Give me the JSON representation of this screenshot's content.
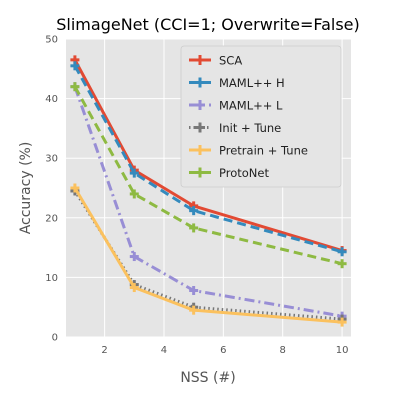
{
  "chart_data": {
    "type": "line",
    "title": "SlimageNet (CCI=1; Overwrite=False)",
    "xlabel": "NSS (#)",
    "ylabel": "Accuracy (%)",
    "xlim": [
      0.7,
      10.3
    ],
    "ylim": [
      0,
      50
    ],
    "xticks": [
      2,
      4,
      6,
      8,
      10
    ],
    "yticks": [
      0,
      10,
      20,
      30,
      40,
      50
    ],
    "grid": true,
    "legend_position": "top-right",
    "x": [
      1,
      3,
      5,
      10
    ],
    "series": [
      {
        "name": "SCA",
        "values": [
          46.5,
          28.0,
          22.0,
          14.5
        ],
        "color": "#E24A33",
        "linestyle": "solid",
        "marker": "plus"
      },
      {
        "name": "MAML++ H",
        "values": [
          45.5,
          27.5,
          21.2,
          14.3
        ],
        "color": "#348ABD",
        "linestyle": "dashed",
        "marker": "plus"
      },
      {
        "name": "MAML++ L",
        "values": [
          42.0,
          13.5,
          7.8,
          3.5
        ],
        "color": "#988ED5",
        "linestyle": "dashdot",
        "marker": "plus"
      },
      {
        "name": "Init + Tune",
        "values": [
          24.5,
          8.8,
          5.0,
          3.0
        ],
        "color": "#777777",
        "linestyle": "dotted",
        "marker": "plus"
      },
      {
        "name": "Pretrain + Tune",
        "values": [
          25.0,
          8.3,
          4.5,
          2.5
        ],
        "color": "#FBC15E",
        "linestyle": "solid",
        "marker": "plus"
      },
      {
        "name": "ProtoNet",
        "values": [
          42.0,
          24.0,
          18.3,
          12.3
        ],
        "color": "#8EBA42",
        "linestyle": "dashed",
        "marker": "plus"
      }
    ]
  }
}
